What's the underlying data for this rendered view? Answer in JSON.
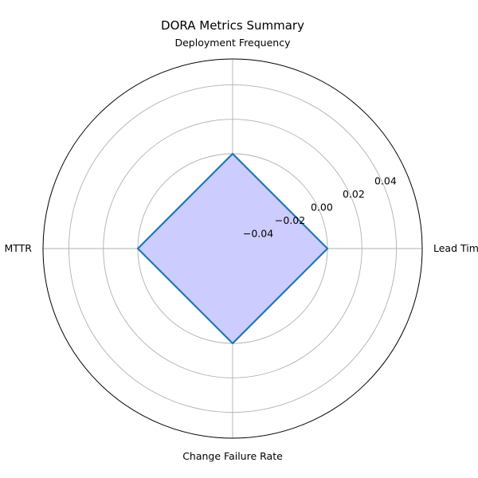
{
  "chart_data": {
    "type": "radar",
    "title": "DORA Metrics Summary",
    "categories": [
      "Lead Time",
      "Deployment Frequency",
      "MTTR",
      "Change Failure Rate"
    ],
    "series": [
      {
        "values": [
          0,
          0,
          0,
          0
        ],
        "fill_color": "#ccccff",
        "line_color": "#1f77b4"
      }
    ],
    "rlim": [
      -0.055,
      0.055
    ],
    "rticks": [
      -0.04,
      -0.02,
      0.0,
      0.02,
      0.04
    ],
    "rtick_labels": [
      "−0.04",
      "−0.02",
      "0.00",
      "0.02",
      "0.04"
    ],
    "grid": true
  }
}
